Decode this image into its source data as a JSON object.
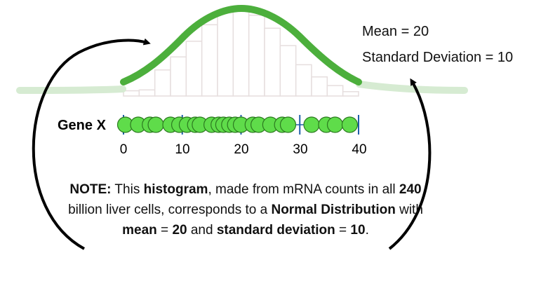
{
  "diagram": {
    "gene_label": "Gene X",
    "axis_ticks": [
      "0",
      "10",
      "20",
      "30",
      "40"
    ],
    "stats": {
      "mean_text": "Mean = 20",
      "sd_text": "Standard Deviation = 10"
    },
    "note": {
      "lead": "NOTE:",
      "t1": " This ",
      "b1": "histogram",
      "t2": ", made from mRNA counts in all ",
      "b2": "240",
      "t3": " billion liver cells, corresponds to a ",
      "b3": "Normal Distribution",
      "t4": " with ",
      "b4": "mean",
      "t5": " = ",
      "b5": "20",
      "t6": " and ",
      "b6": "standard deviation",
      "t7": " = ",
      "b7": "10",
      "t8": "."
    },
    "points": [
      0.3,
      2.5,
      4.5,
      5.5,
      8,
      9.5,
      10.8,
      12.2,
      13,
      15,
      16.2,
      17,
      18,
      19,
      20,
      22,
      23,
      25,
      27,
      28,
      32,
      34.5,
      36,
      38.5
    ],
    "histogram_bins": [
      0.06,
      0.07,
      0.3,
      0.45,
      0.63,
      0.82,
      0.96,
      0.99,
      0.93,
      0.78,
      0.58,
      0.36,
      0.22,
      0.12,
      0.05
    ],
    "colors": {
      "curve": "#4caf3c",
      "curve_faded": "#d6ebd2",
      "dot_fill": "#5fdc4a",
      "dot_stroke": "#2c7a20",
      "axis_tick": "#1f5ea8",
      "histogram": "#e6dede",
      "arrow": "#000000"
    }
  }
}
